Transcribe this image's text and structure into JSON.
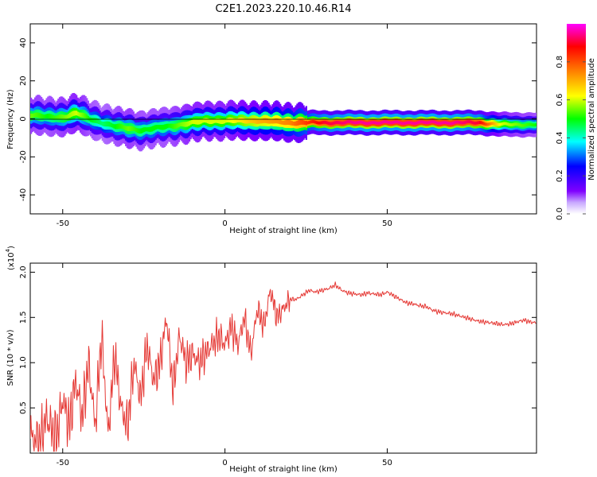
{
  "title": "C2E1.2023.220.10.46.R14",
  "chart_data": [
    {
      "type": "heatmap",
      "xlabel": "Height of straight line (km)",
      "ylabel": "Frequency (Hz)",
      "xlim": [
        -60,
        96
      ],
      "ylim": [
        -50,
        50
      ],
      "x_ticks": [
        -50,
        0,
        50
      ],
      "y_ticks": [
        -40,
        -20,
        0,
        20,
        40
      ],
      "colorbar": {
        "label": "Normalized spectral amplitude",
        "range": [
          0.0,
          1.0
        ],
        "ticks": [
          "0.0",
          "0.2",
          "0.4",
          "0.6",
          "0.8"
        ],
        "colors": [
          "#ffffff",
          "#8000ff",
          "#0000ff",
          "#00ffff",
          "#00ff00",
          "#ffff00",
          "#ff8000",
          "#ff0000",
          "#ff00ff"
        ]
      },
      "ridge": [
        {
          "x": -60,
          "f": 2,
          "amp": 0.55
        },
        {
          "x": -55,
          "f": 1,
          "amp": 0.5
        },
        {
          "x": -50,
          "f": 1,
          "amp": 0.55
        },
        {
          "x": -46,
          "f": 3,
          "amp": 0.6
        },
        {
          "x": -42,
          "f": 0,
          "amp": 0.5
        },
        {
          "x": -38,
          "f": -2,
          "amp": 0.45
        },
        {
          "x": -34,
          "f": -4,
          "amp": 0.5
        },
        {
          "x": -30,
          "f": -5,
          "amp": 0.55
        },
        {
          "x": -26,
          "f": -6,
          "amp": 0.5
        },
        {
          "x": -22,
          "f": -5,
          "amp": 0.5
        },
        {
          "x": -18,
          "f": -4,
          "amp": 0.5
        },
        {
          "x": -14,
          "f": -3,
          "amp": 0.55
        },
        {
          "x": -10,
          "f": -2,
          "amp": 0.6
        },
        {
          "x": -6,
          "f": -1,
          "amp": 0.6
        },
        {
          "x": 0,
          "f": -1,
          "amp": 0.6
        },
        {
          "x": 5,
          "f": -1,
          "amp": 0.65
        },
        {
          "x": 10,
          "f": -1,
          "amp": 0.7
        },
        {
          "x": 20,
          "f": -2,
          "amp": 0.75
        },
        {
          "x": 30,
          "f": -2,
          "amp": 0.9
        },
        {
          "x": 40,
          "f": -2,
          "amp": 0.95
        },
        {
          "x": 50,
          "f": -2,
          "amp": 0.95
        },
        {
          "x": 60,
          "f": -2,
          "amp": 0.95
        },
        {
          "x": 70,
          "f": -2,
          "amp": 0.95
        },
        {
          "x": 78,
          "f": -2,
          "amp": 0.9
        },
        {
          "x": 85,
          "f": -3,
          "amp": 0.6
        },
        {
          "x": 90,
          "f": -3,
          "amp": 0.55
        },
        {
          "x": 96,
          "f": -3,
          "amp": 0.5
        }
      ]
    },
    {
      "type": "line",
      "xlabel": "Height of straight line (km)",
      "ylabel": "SNR (10 * v/v)",
      "y_multiplier_label": "(x10",
      "y_multiplier_exp": "4",
      "y_multiplier_close": ")",
      "xlim": [
        -60,
        96
      ],
      "ylim": [
        0.0,
        2.1
      ],
      "x_ticks": [
        -50,
        0,
        50
      ],
      "y_ticks": [
        "0.5",
        "1.0",
        "1.5",
        "2.0"
      ],
      "line_color": "#e53935",
      "series": [
        {
          "x": [
            -60,
            -57,
            -55,
            -52,
            -50,
            -48,
            -46,
            -44,
            -42,
            -40,
            -38,
            -36,
            -34,
            -32,
            -30,
            -28,
            -26,
            -24,
            -22,
            -20,
            -18,
            -16,
            -14,
            -12,
            -10,
            -8,
            -6,
            -4,
            -2,
            0,
            2,
            4,
            6,
            8,
            10,
            12,
            14,
            16,
            18,
            20,
            22,
            24,
            26,
            28,
            30,
            32,
            34,
            36,
            38,
            40,
            42,
            44,
            46,
            48,
            50,
            52,
            54,
            56,
            58,
            60,
            62,
            64,
            66,
            68,
            70,
            72,
            74,
            76,
            78,
            80,
            82,
            84,
            86,
            88,
            90,
            92,
            94,
            96
          ],
          "y": [
            0.2,
            0.1,
            0.4,
            0.15,
            0.6,
            0.3,
            0.8,
            0.4,
            1.0,
            0.3,
            1.3,
            0.2,
            1.1,
            0.5,
            0.3,
            1.0,
            0.6,
            1.2,
            0.8,
            1.0,
            1.5,
            0.7,
            1.3,
            1.0,
            1.1,
            1.0,
            1.1,
            1.2,
            1.3,
            1.2,
            1.4,
            1.2,
            1.5,
            1.1,
            1.6,
            1.4,
            1.8,
            1.5,
            1.6,
            1.7,
            1.7,
            1.75,
            1.8,
            1.78,
            1.8,
            1.82,
            1.86,
            1.8,
            1.77,
            1.76,
            1.75,
            1.77,
            1.76,
            1.75,
            1.78,
            1.74,
            1.7,
            1.66,
            1.65,
            1.63,
            1.62,
            1.58,
            1.56,
            1.55,
            1.54,
            1.52,
            1.5,
            1.48,
            1.46,
            1.45,
            1.44,
            1.43,
            1.42,
            1.43,
            1.45,
            1.47,
            1.45,
            1.44
          ]
        }
      ]
    }
  ]
}
